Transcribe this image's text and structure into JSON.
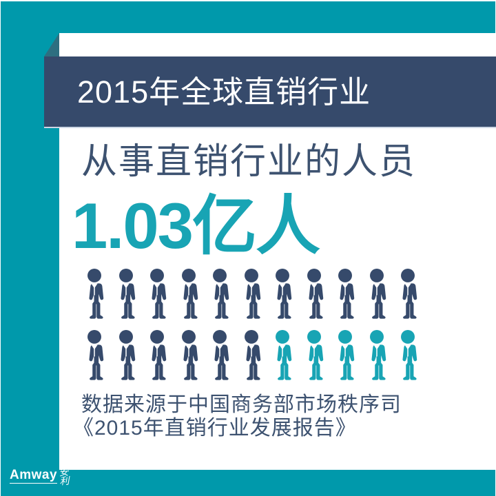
{
  "colors": {
    "background_teal": "#0099AB",
    "card_white": "#FFFFFF",
    "banner_navy": "#364A6B",
    "fold_dark_teal": "#2E6F80",
    "text_navy": "#3D5270",
    "accent_teal": "#18A4B4",
    "banner_shadow": "#CDD6E5",
    "logo_white": "#FFFFFF"
  },
  "banner": {
    "title": "2015年全球直销行业"
  },
  "main": {
    "subtitle": "从事直销行业的人员",
    "headline_value": "1.03亿人"
  },
  "source": {
    "line1": "数据来源于中国商务部市场秩序司",
    "line2": "《2015年直销行业发展报告》"
  },
  "logo": {
    "brand": "Amway",
    "hanzi_top": "安",
    "hanzi_bottom": "利"
  },
  "chart_data": {
    "type": "pictogram",
    "title": "2015年全球直销行业",
    "metric_label": "从事直销行业的人员",
    "value_text": "1.03亿人",
    "value": 1.03,
    "unit": "亿人",
    "rows": 2,
    "icons_per_row": 11,
    "total_icons": 22,
    "icon_colors_by_row": [
      [
        "navy",
        "navy",
        "navy",
        "navy",
        "navy",
        "navy",
        "navy",
        "navy",
        "navy",
        "navy",
        "navy"
      ],
      [
        "navy",
        "navy",
        "navy",
        "navy",
        "navy",
        "navy",
        "teal",
        "teal",
        "teal",
        "teal",
        "teal"
      ]
    ],
    "icon_color_values": {
      "navy": "#364A6B",
      "teal": "#18A4B4"
    },
    "legend_position": "none",
    "source": "数据来源于中国商务部市场秩序司《2015年直销行业发展报告》"
  }
}
